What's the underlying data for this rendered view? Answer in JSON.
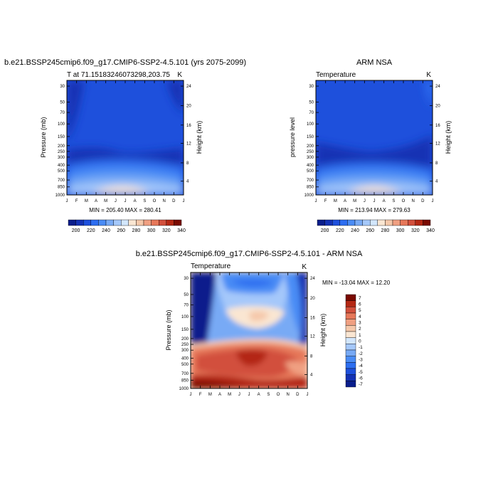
{
  "chart_data": [
    {
      "type": "heatmap",
      "title": "b.e21.BSSP245cmip6.f09_g17.CMIP6-SSP2-4.5.101 (yrs 2075-2099)",
      "left_label": "T at 71.15183246073298,203.75",
      "units": "K",
      "ylabel": "Pressure (mb)",
      "right_label": "Height (km)",
      "x_ticks": [
        "J",
        "F",
        "M",
        "A",
        "M",
        "J",
        "J",
        "A",
        "S",
        "O",
        "N",
        "D",
        "J"
      ],
      "y_ticks": [
        "30",
        "50",
        "70",
        "100",
        "150",
        "200",
        "250",
        "300",
        "400",
        "500",
        "700",
        "850",
        "1000"
      ],
      "height_ticks": [
        "24",
        "20",
        "16",
        "12",
        "8",
        "4"
      ],
      "min": 205.4,
      "max": 280.41,
      "stats_text": "MIN = 205.40 MAX = 280.41",
      "colorbar_labels": [
        "200",
        "220",
        "240",
        "260",
        "280",
        "300",
        "320",
        "340"
      ]
    },
    {
      "type": "heatmap",
      "title": "ARM NSA",
      "left_label": "Temperature",
      "units": "K",
      "ylabel": "pressure level",
      "right_label": "Height (km)",
      "x_ticks": [
        "J",
        "F",
        "M",
        "A",
        "M",
        "J",
        "J",
        "A",
        "S",
        "O",
        "N",
        "D",
        "J"
      ],
      "y_ticks": [
        "30",
        "50",
        "70",
        "100",
        "150",
        "200",
        "250",
        "300",
        "400",
        "500",
        "700",
        "850",
        "1000"
      ],
      "height_ticks": [
        "24",
        "20",
        "16",
        "12",
        "8",
        "4"
      ],
      "min": 213.94,
      "max": 279.63,
      "stats_text": "MIN = 213.94 MAX = 279.63",
      "colorbar_labels": [
        "200",
        "220",
        "240",
        "260",
        "280",
        "300",
        "320",
        "340"
      ]
    },
    {
      "type": "heatmap",
      "title": "b.e21.BSSP245cmip6.f09_g17.CMIP6-SSP2-4.5.101 - ARM NSA",
      "left_label": "Temperature",
      "units": "K",
      "ylabel": "Pressure (mb)",
      "right_label": "Height (km)",
      "x_ticks": [
        "J",
        "F",
        "M",
        "A",
        "M",
        "J",
        "J",
        "A",
        "S",
        "O",
        "N",
        "D",
        "J"
      ],
      "y_ticks": [
        "30",
        "50",
        "70",
        "100",
        "150",
        "200",
        "250",
        "300",
        "400",
        "500",
        "700",
        "850",
        "1000"
      ],
      "height_ticks": [
        "24",
        "20",
        "16",
        "12",
        "8",
        "4"
      ],
      "min": -13.04,
      "max": 12.2,
      "stats_text": "MIN = -13.04 MAX =  12.20",
      "colorbar_labels": [
        "7",
        "6",
        "5",
        "4",
        "3",
        "2",
        "1",
        "0",
        "-1",
        "-2",
        "-3",
        "-4",
        "-5",
        "-6",
        "-7"
      ]
    }
  ],
  "palette": {
    "abs": [
      "#0a1e8c",
      "#1432b4",
      "#1e50dc",
      "#2d6ef0",
      "#4a8cf5",
      "#78aaf5",
      "#a5c8fa",
      "#d2e6fc",
      "#fae6d2",
      "#f5c8aa",
      "#f0a082",
      "#e6785a",
      "#d2503c",
      "#b42814",
      "#7a0a00"
    ],
    "diff": [
      "#0a1e8c",
      "#1432b4",
      "#1e50dc",
      "#2d6ef0",
      "#4a8cf5",
      "#78aaf5",
      "#a5c8fa",
      "#d2e6fc",
      "#fae6d2",
      "#f5c8aa",
      "#f0a082",
      "#e6785a",
      "#d2503c",
      "#b42814",
      "#7a0a00"
    ]
  }
}
